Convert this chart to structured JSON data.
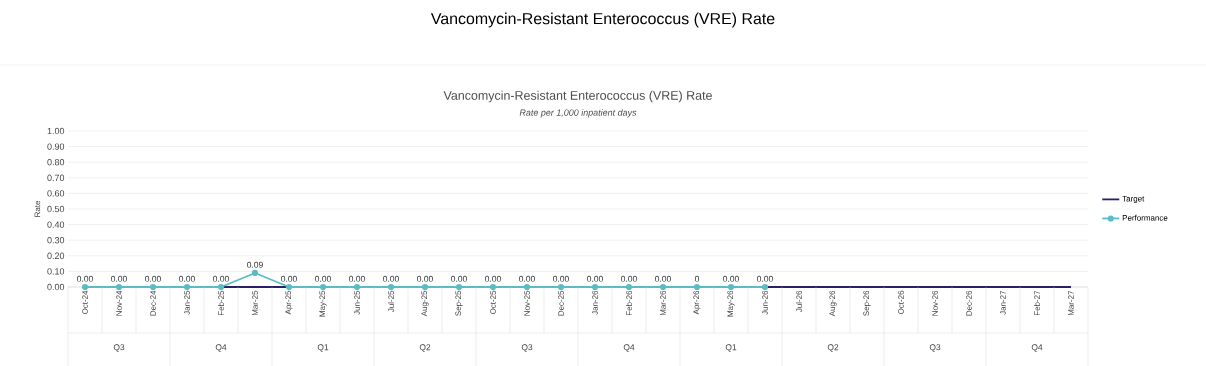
{
  "chart_data": {
    "type": "line",
    "title": "Vancomycin-Resistant Enterococcus (VRE) Rate",
    "subtitle": "Rate per 1,000 inpatient days",
    "ylabel": "Rate",
    "annotations": [
      "Vancomycin-Resistant Enterococcus (VRE) Rate",
      "Q3",
      "Q4",
      "Q1",
      "Q2",
      "Q3",
      "Q4",
      "Q1",
      "Q2",
      "Q3",
      "Q4"
    ],
    "categories": [
      "Oct-24",
      "Nov-24",
      "Dec-24",
      "Jan-25",
      "Feb-25",
      "Mar-25",
      "Apr-25",
      "May-25",
      "Jun-25",
      "Jul-25",
      "Aug-25",
      "Sep-25",
      "Oct-25",
      "Nov-25",
      "Dec-25",
      "Jan-26",
      "Feb-26",
      "Mar-26",
      "Apr-26",
      "May-26",
      "Jun-26",
      "Jul-26",
      "Aug-26",
      "Sep-26",
      "Oct-26",
      "Nov-26",
      "Dec-26",
      "Jan-27",
      "Feb-27",
      "Mar-27"
    ],
    "series": [
      {
        "name": "Target",
        "color": "#2b1f66",
        "marker": "none",
        "line_style": "solid",
        "values": [
          null,
          null,
          null,
          null,
          0,
          0,
          0,
          null,
          null,
          null,
          null,
          null,
          null,
          null,
          null,
          null,
          null,
          null,
          null,
          null,
          0,
          0,
          0,
          0,
          0,
          0,
          0,
          0,
          0,
          0
        ]
      },
      {
        "name": "Performance",
        "color": "#5bbcc6",
        "marker": "circle",
        "line_style": "solid",
        "values": [
          0,
          0,
          0,
          0,
          0,
          0.09,
          0,
          0,
          0,
          0,
          0,
          0,
          0,
          0,
          0,
          0,
          0,
          0,
          0,
          0,
          0,
          null,
          null,
          null,
          null,
          null,
          null,
          null,
          null,
          null
        ],
        "value_labels": [
          "0.00",
          "0.00",
          "0.00",
          "0.00",
          "0.00",
          "0.09",
          "0.00",
          "0.00",
          "0.00",
          "0.00",
          "0.00",
          "0.00",
          "0.00",
          "0.00",
          "0.00",
          "0.00",
          "0.00",
          "0.00",
          "0",
          "0.00",
          "0.00",
          null,
          null,
          null,
          null,
          null,
          null,
          null,
          null,
          null
        ]
      }
    ],
    "ylim": [
      0,
      1
    ],
    "yticks": [
      {
        "value": 0,
        "label": "0.00"
      },
      {
        "value": 0.1,
        "label": "0.10"
      },
      {
        "value": 0.2,
        "label": "0.20"
      },
      {
        "value": 0.3,
        "label": "0.30"
      },
      {
        "value": 0.4,
        "label": "0.40"
      },
      {
        "value": 0.5,
        "label": "0.50"
      },
      {
        "value": 0.6,
        "label": "0.60"
      },
      {
        "value": 0.7,
        "label": "0.70"
      },
      {
        "value": 0.8,
        "label": "0.80"
      },
      {
        "value": 0.9,
        "label": "0.90"
      },
      {
        "value": 1,
        "label": "1.00"
      }
    ],
    "grid": "y",
    "legend": "right"
  }
}
